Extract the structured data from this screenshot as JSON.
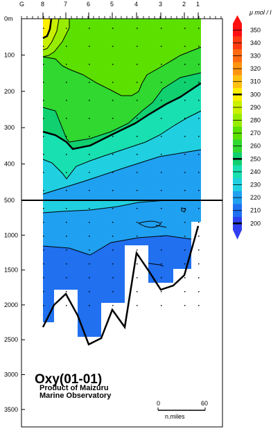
{
  "chart_data": {
    "type": "heatmap",
    "title": "Oxy(01-01)",
    "subtitle_line1": "Product of Maizuru",
    "subtitle_line2": "Marine Observatory",
    "colorbar_unit": "μ mol / l",
    "stations": [
      "G",
      "8",
      "7",
      "6",
      "5",
      "4",
      "3",
      "2",
      "1"
    ],
    "depth_ticks_upper": [
      "0m",
      "100",
      "200",
      "300",
      "400"
    ],
    "depth_ticks_lower": [
      "500",
      "1000",
      "1500",
      "2000",
      "2500",
      "3000",
      "3500"
    ],
    "upper_section": {
      "depth_range": [
        0,
        500
      ]
    },
    "lower_section": {
      "depth_range": [
        500,
        3750
      ]
    },
    "colorbar": {
      "levels": [
        350,
        340,
        330,
        320,
        310,
        300,
        290,
        280,
        270,
        260,
        250,
        240,
        230,
        220,
        210,
        200
      ],
      "labels": [
        "350",
        "340",
        "330",
        "320",
        "310",
        "300",
        "290",
        "280",
        "270",
        "260",
        "250",
        "240",
        "230",
        "220",
        "210",
        "200"
      ],
      "colors": [
        "#ff1010",
        "#ff3a10",
        "#ff6a10",
        "#ff9410",
        "#ffc010",
        "#ffee00",
        "#c8f000",
        "#98ec00",
        "#5ce000",
        "#30d830",
        "#10d070",
        "#18e0b0",
        "#20d0e0",
        "#20a0f0",
        "#2070f0",
        "#3040f0"
      ],
      "bold_levels": [
        300,
        250,
        200
      ]
    },
    "scale_bar": {
      "start": "0",
      "end": "60",
      "unit": "n.miles"
    }
  }
}
